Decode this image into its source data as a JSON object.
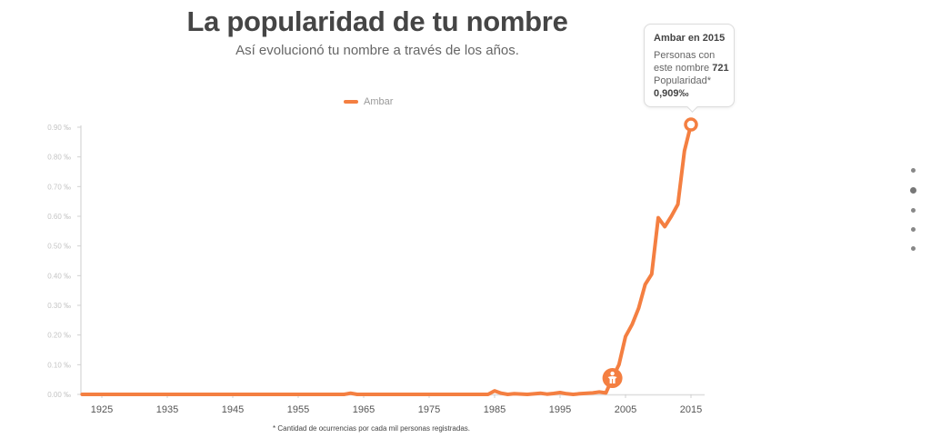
{
  "header": {
    "title": "La popularidad de tu nombre",
    "subtitle": "Así evolucionó tu nombre a través de los años."
  },
  "legend": {
    "label": "Ambar",
    "color": "#f47f41"
  },
  "tooltip": {
    "title": "Ambar en 2015",
    "line1": "Personas con",
    "line2_prefix": "este nombre ",
    "count": "721",
    "line3": "Popularidad*",
    "value": "0,909‰"
  },
  "footnote": "* Cantidad de ocurrencias por cada mil personas registradas.",
  "pagination": {
    "count": 5,
    "active_index": 1
  },
  "chart_data": {
    "type": "line",
    "title": "La popularidad de tu nombre",
    "xlabel": "",
    "ylabel": "",
    "xlim": [
      1922,
      2015
    ],
    "ylim": [
      0,
      0.9
    ],
    "grid": false,
    "legend_position": "top-center",
    "y_ticks": [
      "0.00 ‰",
      "0.10 ‰",
      "0.20 ‰",
      "0.30 ‰",
      "0.40 ‰",
      "0.50 ‰",
      "0.60 ‰",
      "0.70 ‰",
      "0.80 ‰",
      "0.90 ‰"
    ],
    "y_tick_values": [
      0,
      0.1,
      0.2,
      0.3,
      0.4,
      0.5,
      0.6,
      0.7,
      0.8,
      0.9
    ],
    "x_ticks": [
      "1925",
      "1935",
      "1945",
      "1955",
      "1965",
      "1975",
      "1985",
      "1995",
      "2005",
      "2015"
    ],
    "x_tick_values": [
      1925,
      1935,
      1945,
      1955,
      1965,
      1975,
      1985,
      1995,
      2005,
      2015
    ],
    "series": [
      {
        "name": "Ambar",
        "color": "#f47f41",
        "x": [
          1922,
          1962,
          1963,
          1964,
          1984,
          1985,
          1986,
          1987,
          1988,
          1990,
          1992,
          1993,
          1994,
          1995,
          1996,
          1997,
          1998,
          2000,
          2001,
          2002,
          2003,
          2004,
          2005,
          2006,
          2007,
          2008,
          2009,
          2010,
          2011,
          2012,
          2013,
          2014,
          2015
        ],
        "values": [
          0,
          0,
          0.004,
          0,
          0,
          0.012,
          0.004,
          0,
          0.002,
          0,
          0.004,
          0.001,
          0.003,
          0.006,
          0.002,
          0,
          0.002,
          0.005,
          0.008,
          0.005,
          0.055,
          0.1,
          0.195,
          0.235,
          0.29,
          0.37,
          0.405,
          0.595,
          0.565,
          0.6,
          0.64,
          0.82,
          0.909
        ]
      }
    ],
    "markers": [
      {
        "year": 2003,
        "type": "birth-year",
        "icon": "baby-icon"
      },
      {
        "year": 2015,
        "type": "selected-point"
      }
    ]
  }
}
